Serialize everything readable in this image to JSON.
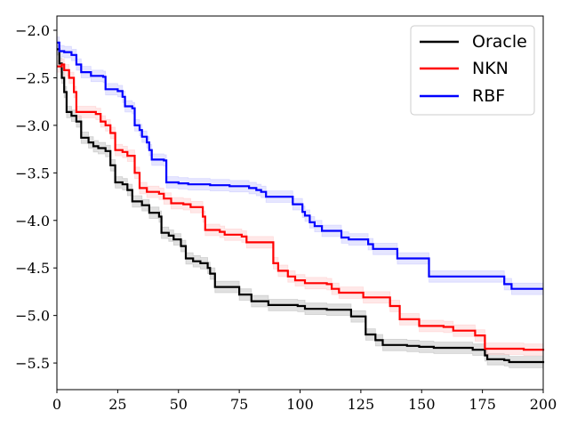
{
  "chart_data": {
    "type": "line",
    "title": "",
    "xlabel": "",
    "ylabel": "",
    "xlim": [
      0,
      200
    ],
    "ylim": [
      -5.78,
      -1.85
    ],
    "x_ticks": [
      0,
      25,
      50,
      75,
      100,
      125,
      150,
      175,
      200
    ],
    "x_tick_labels": [
      "0",
      "25",
      "50",
      "75",
      "100",
      "125",
      "150",
      "175",
      "200"
    ],
    "y_ticks": [
      -2.0,
      -2.5,
      -3.0,
      -3.5,
      -4.0,
      -4.5,
      -5.0,
      -5.5
    ],
    "y_tick_labels": [
      "−2.0",
      "−2.5",
      "−3.0",
      "−3.5",
      "−4.0",
      "−4.5",
      "−5.0",
      "−5.5"
    ],
    "grid": false,
    "legend_position": "top-right",
    "step_curves": true,
    "series": [
      {
        "name": "Oracle",
        "color": "#000000",
        "band_color": "#bbbbbb",
        "band_halfwidth": 0.06,
        "points": [
          [
            0,
            -2.2
          ],
          [
            1,
            -2.35
          ],
          [
            2,
            -2.5
          ],
          [
            3,
            -2.65
          ],
          [
            4,
            -2.86
          ],
          [
            6,
            -2.9
          ],
          [
            8,
            -2.96
          ],
          [
            10,
            -3.13
          ],
          [
            13,
            -3.18
          ],
          [
            15,
            -3.22
          ],
          [
            17,
            -3.24
          ],
          [
            20,
            -3.27
          ],
          [
            22,
            -3.42
          ],
          [
            24,
            -3.6
          ],
          [
            27,
            -3.62
          ],
          [
            29,
            -3.68
          ],
          [
            31,
            -3.8
          ],
          [
            35,
            -3.84
          ],
          [
            38,
            -3.92
          ],
          [
            42,
            -3.96
          ],
          [
            43,
            -4.13
          ],
          [
            46,
            -4.16
          ],
          [
            48,
            -4.2
          ],
          [
            51,
            -4.27
          ],
          [
            53,
            -4.4
          ],
          [
            56,
            -4.43
          ],
          [
            59,
            -4.45
          ],
          [
            62,
            -4.5
          ],
          [
            63,
            -4.56
          ],
          [
            65,
            -4.7
          ],
          [
            73,
            -4.7
          ],
          [
            75,
            -4.78
          ],
          [
            80,
            -4.85
          ],
          [
            87,
            -4.89
          ],
          [
            99,
            -4.9
          ],
          [
            102,
            -4.93
          ],
          [
            111,
            -4.94
          ],
          [
            119,
            -4.94
          ],
          [
            121,
            -5.01
          ],
          [
            127,
            -5.2
          ],
          [
            131,
            -5.26
          ],
          [
            134,
            -5.31
          ],
          [
            144,
            -5.32
          ],
          [
            149,
            -5.33
          ],
          [
            155,
            -5.34
          ],
          [
            171,
            -5.36
          ],
          [
            176,
            -5.42
          ],
          [
            177,
            -5.46
          ],
          [
            184,
            -5.47
          ],
          [
            186,
            -5.49
          ],
          [
            200,
            -5.5
          ]
        ]
      },
      {
        "name": "NKN",
        "color": "#ff0000",
        "band_color": "#ffcccc",
        "band_halfwidth": 0.06,
        "points": [
          [
            0,
            -2.38
          ],
          [
            2,
            -2.36
          ],
          [
            3,
            -2.42
          ],
          [
            5,
            -2.5
          ],
          [
            7,
            -2.65
          ],
          [
            8,
            -2.86
          ],
          [
            13,
            -2.86
          ],
          [
            16,
            -2.88
          ],
          [
            18,
            -2.96
          ],
          [
            20,
            -3.0
          ],
          [
            22,
            -3.08
          ],
          [
            24,
            -3.26
          ],
          [
            27,
            -3.28
          ],
          [
            29,
            -3.32
          ],
          [
            32,
            -3.5
          ],
          [
            34,
            -3.66
          ],
          [
            37,
            -3.7
          ],
          [
            42,
            -3.72
          ],
          [
            44,
            -3.77
          ],
          [
            47,
            -3.82
          ],
          [
            52,
            -3.83
          ],
          [
            55,
            -3.86
          ],
          [
            60,
            -3.96
          ],
          [
            61,
            -4.1
          ],
          [
            67,
            -4.12
          ],
          [
            69,
            -4.15
          ],
          [
            76,
            -4.17
          ],
          [
            78,
            -4.23
          ],
          [
            87,
            -4.23
          ],
          [
            89,
            -4.45
          ],
          [
            91,
            -4.53
          ],
          [
            95,
            -4.59
          ],
          [
            98,
            -4.63
          ],
          [
            102,
            -4.66
          ],
          [
            111,
            -4.67
          ],
          [
            113,
            -4.72
          ],
          [
            116,
            -4.76
          ],
          [
            123,
            -4.76
          ],
          [
            126,
            -4.81
          ],
          [
            136,
            -4.81
          ],
          [
            137,
            -4.9
          ],
          [
            141,
            -5.04
          ],
          [
            147,
            -5.04
          ],
          [
            149,
            -5.11
          ],
          [
            159,
            -5.12
          ],
          [
            163,
            -5.16
          ],
          [
            172,
            -5.21
          ],
          [
            176,
            -5.35
          ],
          [
            192,
            -5.36
          ],
          [
            200,
            -5.37
          ]
        ]
      },
      {
        "name": "RBF",
        "color": "#0000ff",
        "band_color": "#c8c8ff",
        "band_halfwidth": 0.06,
        "points": [
          [
            0,
            -2.13
          ],
          [
            1,
            -2.22
          ],
          [
            3,
            -2.23
          ],
          [
            6,
            -2.26
          ],
          [
            8,
            -2.36
          ],
          [
            10,
            -2.44
          ],
          [
            13,
            -2.44
          ],
          [
            14,
            -2.48
          ],
          [
            19,
            -2.49
          ],
          [
            20,
            -2.62
          ],
          [
            25,
            -2.64
          ],
          [
            27,
            -2.7
          ],
          [
            28,
            -2.8
          ],
          [
            31,
            -2.82
          ],
          [
            32,
            -3.0
          ],
          [
            34,
            -3.05
          ],
          [
            35,
            -3.12
          ],
          [
            37,
            -3.18
          ],
          [
            38,
            -3.26
          ],
          [
            39,
            -3.36
          ],
          [
            44,
            -3.37
          ],
          [
            45,
            -3.6
          ],
          [
            50,
            -3.61
          ],
          [
            54,
            -3.62
          ],
          [
            59,
            -3.62
          ],
          [
            63,
            -3.63
          ],
          [
            71,
            -3.64
          ],
          [
            79,
            -3.66
          ],
          [
            82,
            -3.68
          ],
          [
            84,
            -3.7
          ],
          [
            86,
            -3.75
          ],
          [
            95,
            -3.75
          ],
          [
            97,
            -3.83
          ],
          [
            101,
            -3.91
          ],
          [
            102,
            -3.95
          ],
          [
            104,
            -4.02
          ],
          [
            106,
            -4.06
          ],
          [
            109,
            -4.11
          ],
          [
            114,
            -4.11
          ],
          [
            117,
            -4.18
          ],
          [
            120,
            -4.2
          ],
          [
            127,
            -4.2
          ],
          [
            128,
            -4.25
          ],
          [
            130,
            -4.3
          ],
          [
            139,
            -4.3
          ],
          [
            140,
            -4.4
          ],
          [
            150,
            -4.4
          ],
          [
            153,
            -4.59
          ],
          [
            182,
            -4.59
          ],
          [
            184,
            -4.67
          ],
          [
            187,
            -4.72
          ],
          [
            200,
            -4.72
          ]
        ]
      }
    ]
  }
}
